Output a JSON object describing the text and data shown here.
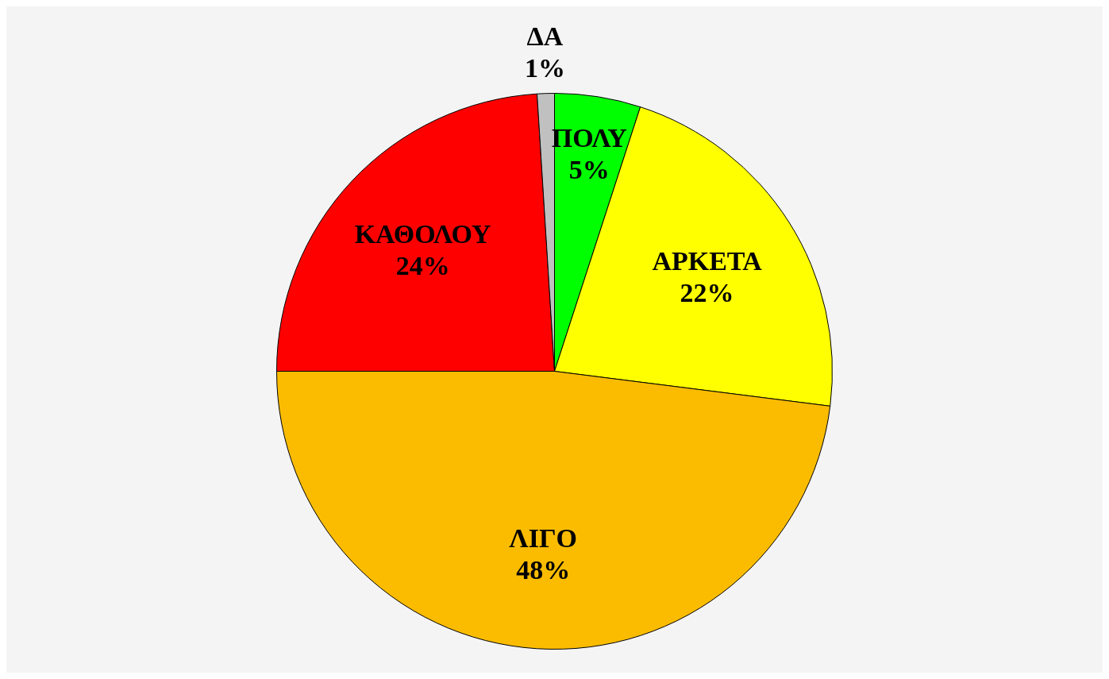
{
  "chart_data": {
    "type": "pie",
    "categories": [
      "ΠΟΛΥ",
      "ΑΡΚΕΤΑ",
      "ΛΙΓΟ",
      "ΚΑΘΟΛΟΥ",
      "ΔΑ"
    ],
    "values": [
      5,
      22,
      48,
      24,
      1
    ],
    "colors": [
      "#00ff00",
      "#ffff00",
      "#fbbc00",
      "#ff0000",
      "#c0c0c0"
    ],
    "value_labels": [
      "5%",
      "22%",
      "48%",
      "24%",
      "1%"
    ],
    "legend": false
  }
}
